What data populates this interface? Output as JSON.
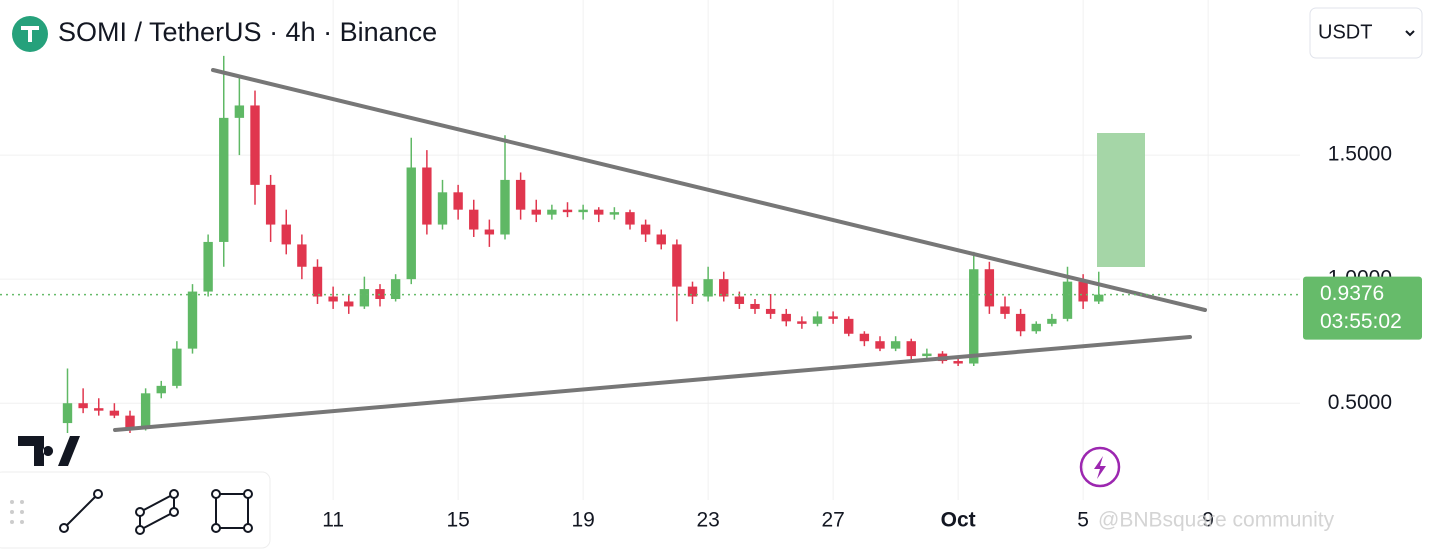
{
  "header": {
    "title": "SOMI / TetherUS · 4h · Binance",
    "currency": "USDT"
  },
  "chart_data": {
    "type": "candlestick",
    "x": [
      2.5,
      3,
      3.5,
      4,
      4.5,
      5,
      5.5,
      6,
      6.5,
      7,
      7.5,
      8,
      8.5,
      9,
      9.5,
      10,
      10.5,
      11,
      11.5,
      12,
      12.5,
      13,
      13.5,
      14,
      14.5,
      15,
      15.5,
      16,
      16.5,
      17,
      17.5,
      18,
      18.5,
      19,
      19.5,
      20,
      20.5,
      21,
      21.5,
      22,
      22.5,
      23,
      23.5,
      24,
      24.5,
      25,
      25.5,
      26,
      26.5,
      27,
      27.5,
      28,
      28.5,
      29,
      29.5,
      30,
      30.5,
      31,
      31.5,
      32,
      32.5,
      33,
      33.5,
      34,
      34.5,
      35,
      35.5
    ],
    "open": [
      0.42,
      0.5,
      0.48,
      0.47,
      0.45,
      0.4,
      0.54,
      0.57,
      0.72,
      0.95,
      1.15,
      1.65,
      1.7,
      1.38,
      1.22,
      1.14,
      1.05,
      0.93,
      0.91,
      0.89,
      0.96,
      0.92,
      1.0,
      1.45,
      1.22,
      1.35,
      1.28,
      1.2,
      1.18,
      1.4,
      1.28,
      1.26,
      1.28,
      1.27,
      1.28,
      1.26,
      1.27,
      1.22,
      1.18,
      1.14,
      0.97,
      0.93,
      1.0,
      0.93,
      0.9,
      0.88,
      0.86,
      0.83,
      0.82,
      0.85,
      0.84,
      0.78,
      0.75,
      0.72,
      0.75,
      0.69,
      0.7,
      0.67,
      0.66,
      1.04,
      0.89,
      0.86,
      0.79,
      0.82,
      0.84,
      0.99,
      0.91
    ],
    "high": [
      0.64,
      0.56,
      0.52,
      0.5,
      0.47,
      0.56,
      0.59,
      0.75,
      0.98,
      1.18,
      1.9,
      1.82,
      1.76,
      1.42,
      1.28,
      1.18,
      1.08,
      0.97,
      0.94,
      1.01,
      0.98,
      1.02,
      1.57,
      1.52,
      1.4,
      1.38,
      1.32,
      1.24,
      1.58,
      1.43,
      1.32,
      1.3,
      1.31,
      1.3,
      1.29,
      1.29,
      1.28,
      1.24,
      1.2,
      1.16,
      0.99,
      1.05,
      1.03,
      0.95,
      0.92,
      0.94,
      0.88,
      0.85,
      0.87,
      0.87,
      0.85,
      0.79,
      0.77,
      0.77,
      0.76,
      0.72,
      0.71,
      0.69,
      1.11,
      1.07,
      0.93,
      0.88,
      0.83,
      0.86,
      1.05,
      1.02,
      1.03
    ],
    "low": [
      0.38,
      0.46,
      0.45,
      0.44,
      0.38,
      0.39,
      0.52,
      0.56,
      0.7,
      0.93,
      1.05,
      1.5,
      1.3,
      1.15,
      1.1,
      1.0,
      0.9,
      0.88,
      0.86,
      0.88,
      0.89,
      0.91,
      0.98,
      1.18,
      1.2,
      1.24,
      1.17,
      1.13,
      1.16,
      1.24,
      1.23,
      1.24,
      1.25,
      1.24,
      1.23,
      1.24,
      1.2,
      1.15,
      1.12,
      0.83,
      0.9,
      0.91,
      0.91,
      0.88,
      0.86,
      0.84,
      0.81,
      0.8,
      0.81,
      0.82,
      0.77,
      0.73,
      0.71,
      0.71,
      0.67,
      0.67,
      0.66,
      0.65,
      0.65,
      0.86,
      0.84,
      0.77,
      0.78,
      0.81,
      0.83,
      0.88,
      0.9
    ],
    "close": [
      0.5,
      0.48,
      0.47,
      0.45,
      0.4,
      0.54,
      0.57,
      0.72,
      0.95,
      1.15,
      1.65,
      1.7,
      1.38,
      1.22,
      1.14,
      1.05,
      0.93,
      0.91,
      0.89,
      0.96,
      0.92,
      1.0,
      1.45,
      1.22,
      1.35,
      1.28,
      1.2,
      1.18,
      1.4,
      1.28,
      1.26,
      1.28,
      1.27,
      1.28,
      1.26,
      1.27,
      1.22,
      1.18,
      1.14,
      0.97,
      0.93,
      1.0,
      0.93,
      0.9,
      0.88,
      0.86,
      0.83,
      0.82,
      0.85,
      0.84,
      0.78,
      0.75,
      0.72,
      0.75,
      0.69,
      0.7,
      0.67,
      0.66,
      1.04,
      0.89,
      0.86,
      0.79,
      0.82,
      0.84,
      0.99,
      0.91,
      0.9376
    ],
    "up_color": "#5fb865",
    "down_color": "#e0364e",
    "last_price": {
      "value": 0.9376,
      "label": "0.9376",
      "countdown": "03:55:02",
      "color": "#66bb6a"
    },
    "xlim": [
      0.34,
      41.94
    ],
    "xticks": [
      11,
      15,
      19,
      23,
      27,
      {
        "value": 31,
        "label": "Oct"
      },
      {
        "value": 35,
        "label": "5"
      },
      {
        "value": 39,
        "label": "9"
      }
    ],
    "ylim": [
      0.11,
      2.125
    ],
    "yticks": [
      {
        "value": 0.5,
        "label": "0.5000"
      },
      {
        "value": 1,
        "label": "1.0000"
      },
      {
        "value": 1.5,
        "label": "1.5000"
      }
    ],
    "grid": true
  },
  "watermark": "@BNBsquare community"
}
